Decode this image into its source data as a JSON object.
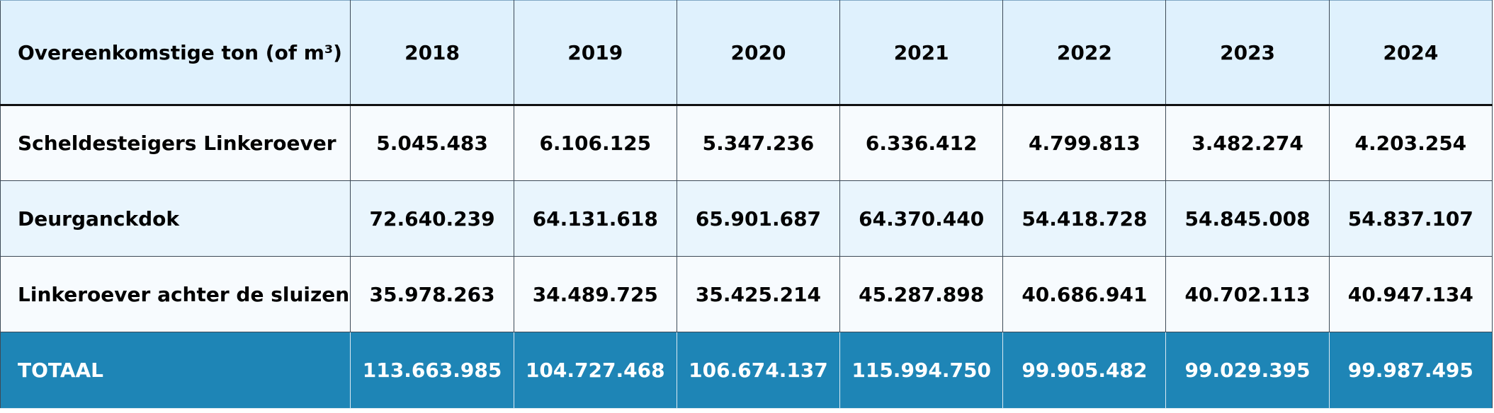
{
  "table": {
    "header": [
      "Overeenkomstige ton (of m³)",
      "2018",
      "2019",
      "2020",
      "2021",
      "2022",
      "2023",
      "2024"
    ],
    "rows": [
      {
        "label": "Scheldesteigers Linkeroever",
        "values": [
          "5.045.483",
          "6.106.125",
          "5.347.236",
          "6.336.412",
          "4.799.813",
          "3.482.274",
          "4.203.254"
        ]
      },
      {
        "label": "Deurganckdok",
        "values": [
          "72.640.239",
          "64.131.618",
          "65.901.687",
          "64.370.440",
          "54.418.728",
          "54.845.008",
          "54.837.107"
        ]
      },
      {
        "label": "Linkeroever achter de sluizen",
        "values": [
          "35.978.263",
          "34.489.725",
          "35.425.214",
          "45.287.898",
          "40.686.941",
          "40.702.113",
          "40.947.134"
        ]
      }
    ],
    "total": {
      "label": "TOTAAL",
      "values": [
        "113.663.985",
        "104.727.468",
        "106.674.137",
        "115.994.750",
        "99.905.482",
        "99.029.395",
        "99.987.495"
      ]
    }
  },
  "colors": {
    "header_bg": "#dff1fd",
    "row_light": "#f7fbfe",
    "row_alt": "#e9f5fd",
    "total_bg": "#1e85b6",
    "total_text": "#ffffff"
  }
}
